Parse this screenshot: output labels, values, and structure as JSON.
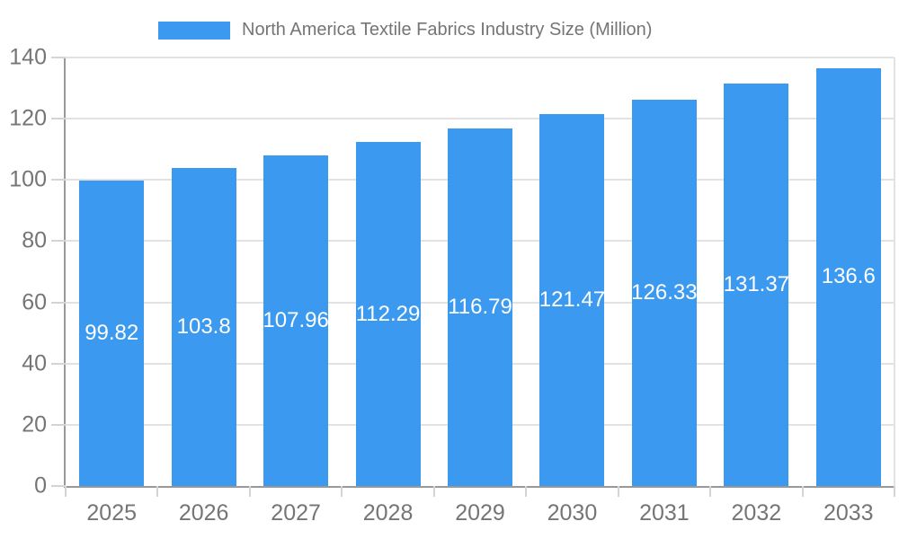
{
  "legend": {
    "label": "North America Textile Fabrics Industry Size (Million)"
  },
  "chart_data": {
    "type": "bar",
    "title": "North America Textile Fabrics Industry Size (Million)",
    "categories": [
      "2025",
      "2026",
      "2027",
      "2028",
      "2029",
      "2030",
      "2031",
      "2032",
      "2033"
    ],
    "values": [
      99.82,
      103.8,
      107.96,
      112.29,
      116.79,
      121.47,
      126.33,
      131.37,
      136.6
    ],
    "value_labels": [
      "99.82",
      "103.8",
      "107.96",
      "112.29",
      "116.79",
      "121.47",
      "126.33",
      "131.37",
      "136.6"
    ],
    "xlabel": "",
    "ylabel": "",
    "ylim": [
      0,
      140
    ],
    "yticks": [
      0,
      20,
      40,
      60,
      80,
      100,
      120,
      140
    ],
    "grid": true,
    "legend_position": "top",
    "value_label_position": "middle-of-bar",
    "colors": {
      "bar": "#3B99F0",
      "grid": "#e2e2e2",
      "axis": "#999999",
      "tick_mark": "#d4d4d4",
      "axis_text": "#757575",
      "bar_label_text": "#ffffff",
      "background": "#ffffff"
    }
  }
}
